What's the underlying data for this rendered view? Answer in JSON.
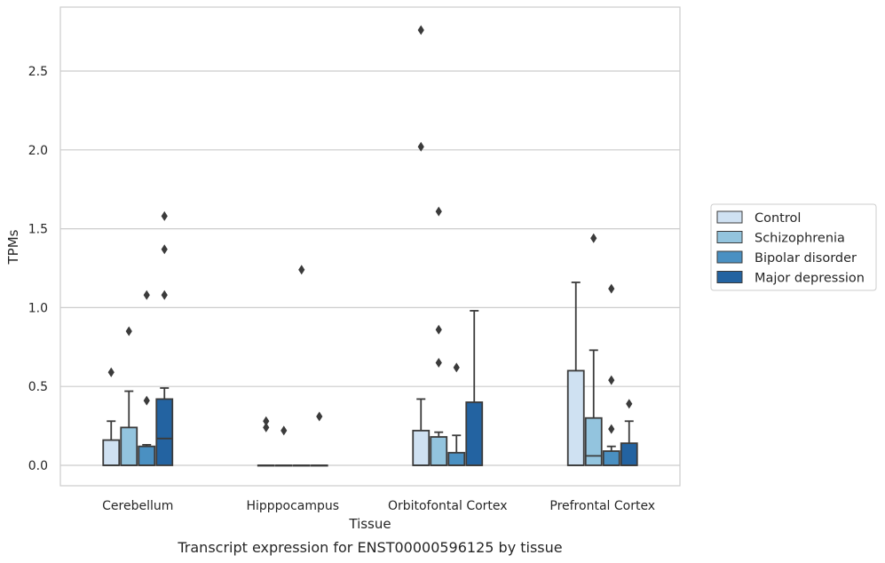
{
  "chart_data": {
    "type": "box",
    "caption": "Transcript expression for ENST00000596125 by tissue",
    "xlabel": "Tissue",
    "ylabel": "TPMs",
    "ylim": [
      -0.13,
      2.9
    ],
    "yticks": [
      "0.0",
      "0.5",
      "1.0",
      "1.5",
      "2.0",
      "2.5"
    ],
    "grid": true,
    "legend_position": "right",
    "categories": [
      "Cerebellum",
      "Hipppocampus",
      "Orbitofontal Cortex",
      "Prefrontal Cortex"
    ],
    "series": [
      {
        "name": "Control",
        "color": "#cfe1f2",
        "boxes": [
          {
            "q1": 0.0,
            "median": 0.0,
            "q3": 0.16,
            "whisker_low": 0.0,
            "whisker_high": 0.28,
            "outliers": [
              0.59
            ]
          },
          {
            "q1": 0.0,
            "median": 0.0,
            "q3": 0.0,
            "whisker_low": 0.0,
            "whisker_high": 0.0,
            "outliers": [
              0.24,
              0.28
            ]
          },
          {
            "q1": 0.0,
            "median": 0.0,
            "q3": 0.22,
            "whisker_low": 0.0,
            "whisker_high": 0.42,
            "outliers": [
              2.02,
              2.76
            ]
          },
          {
            "q1": 0.0,
            "median": 0.0,
            "q3": 0.6,
            "whisker_low": 0.0,
            "whisker_high": 1.16,
            "outliers": []
          }
        ]
      },
      {
        "name": "Schizophrenia",
        "color": "#93c4de",
        "boxes": [
          {
            "q1": 0.0,
            "median": 0.0,
            "q3": 0.24,
            "whisker_low": 0.0,
            "whisker_high": 0.47,
            "outliers": [
              0.85
            ]
          },
          {
            "q1": 0.0,
            "median": 0.0,
            "q3": 0.0,
            "whisker_low": 0.0,
            "whisker_high": 0.0,
            "outliers": [
              0.22
            ]
          },
          {
            "q1": 0.0,
            "median": 0.0,
            "q3": 0.18,
            "whisker_low": 0.0,
            "whisker_high": 0.21,
            "outliers": [
              0.65,
              0.86,
              1.61
            ]
          },
          {
            "q1": 0.0,
            "median": 0.06,
            "q3": 0.3,
            "whisker_low": 0.0,
            "whisker_high": 0.73,
            "outliers": [
              1.44
            ]
          }
        ]
      },
      {
        "name": "Bipolar disorder",
        "color": "#4a90c2",
        "boxes": [
          {
            "q1": 0.0,
            "median": 0.0,
            "q3": 0.12,
            "whisker_low": 0.0,
            "whisker_high": 0.13,
            "outliers": [
              0.41,
              1.08
            ]
          },
          {
            "q1": 0.0,
            "median": 0.0,
            "q3": 0.0,
            "whisker_low": 0.0,
            "whisker_high": 0.0,
            "outliers": [
              1.24
            ]
          },
          {
            "q1": 0.0,
            "median": 0.0,
            "q3": 0.08,
            "whisker_low": 0.0,
            "whisker_high": 0.19,
            "outliers": [
              0.62
            ]
          },
          {
            "q1": 0.0,
            "median": 0.0,
            "q3": 0.09,
            "whisker_low": 0.0,
            "whisker_high": 0.12,
            "outliers": [
              0.23,
              0.54,
              1.12
            ]
          }
        ]
      },
      {
        "name": "Major depression",
        "color": "#2363a1",
        "boxes": [
          {
            "q1": 0.0,
            "median": 0.17,
            "q3": 0.42,
            "whisker_low": 0.0,
            "whisker_high": 0.49,
            "outliers": [
              1.08,
              1.37,
              1.58
            ]
          },
          {
            "q1": 0.0,
            "median": 0.0,
            "q3": 0.0,
            "whisker_low": 0.0,
            "whisker_high": 0.0,
            "outliers": [
              0.31
            ]
          },
          {
            "q1": 0.0,
            "median": 0.0,
            "q3": 0.4,
            "whisker_low": 0.0,
            "whisker_high": 0.98,
            "outliers": []
          },
          {
            "q1": 0.0,
            "median": 0.0,
            "q3": 0.14,
            "whisker_low": 0.0,
            "whisker_high": 0.28,
            "outliers": [
              0.39
            ]
          }
        ]
      }
    ]
  }
}
